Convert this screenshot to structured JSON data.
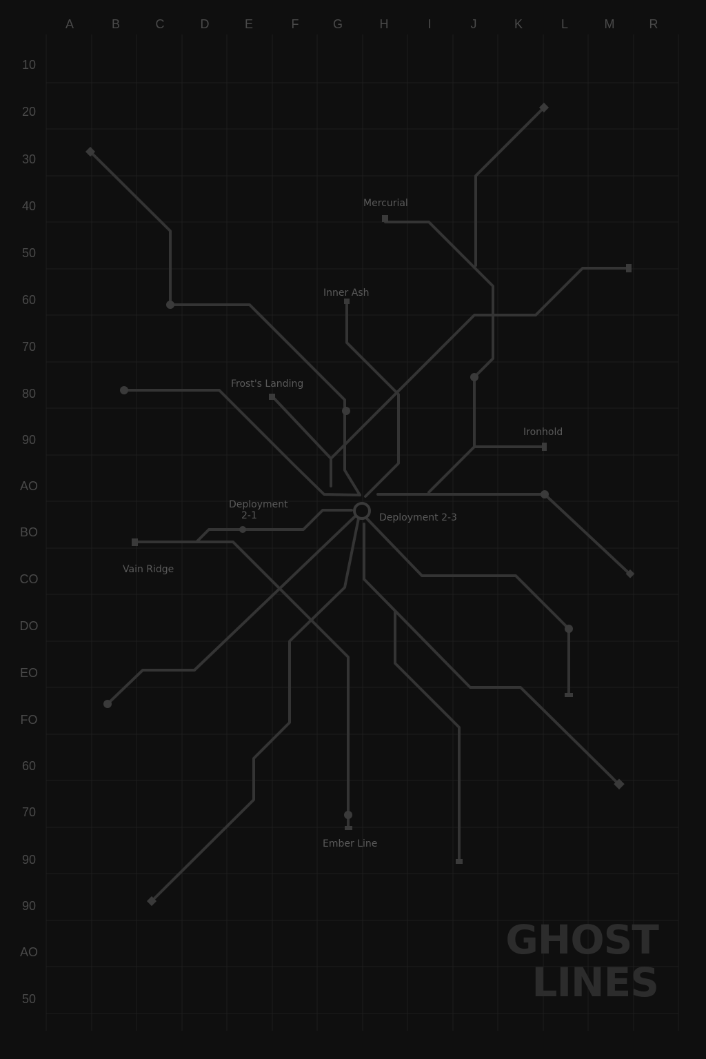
{
  "map": {
    "column_labels": [
      "A",
      "B",
      "C",
      "D",
      "E",
      "F",
      "G",
      "H",
      "I",
      "J",
      "K",
      "L",
      "M",
      "R"
    ],
    "row_labels": [
      "10",
      "20",
      "30",
      "40",
      "50",
      "60",
      "70",
      "80",
      "90",
      "AO",
      "BO",
      "CO",
      "DO",
      "EO",
      "FO",
      "60",
      "70",
      "90",
      "90",
      "AO",
      "50"
    ],
    "stations": {
      "mercurial": "Mercurial",
      "inner_ash": "Inner Ash",
      "frosts_landing": "Frost's Landing",
      "ironhold": "Ironhold",
      "deployment_2_1_line1": "Deployment",
      "deployment_2_1_line2": "2-1",
      "deployment_2_3": "Deployment 2-3",
      "vain_ridge": "Vain Ridge",
      "ember_line": "Ember Line"
    },
    "title_line1": "GHOST",
    "title_line2": "LINES",
    "colors": {
      "background": "#0f0f0f",
      "grid": "#1e1e1e",
      "route": "#343434",
      "label": "#5a5a5a",
      "title": "#2c2c2c"
    }
  }
}
